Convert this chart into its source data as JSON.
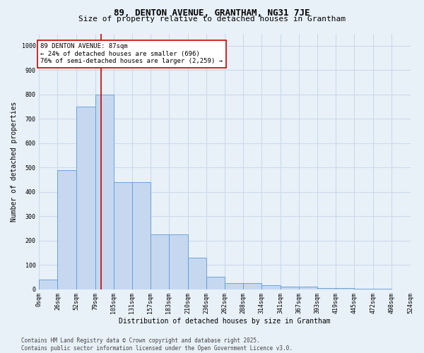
{
  "title_line1": "89, DENTON AVENUE, GRANTHAM, NG31 7JE",
  "title_line2": "Size of property relative to detached houses in Grantham",
  "xlabel": "Distribution of detached houses by size in Grantham",
  "ylabel": "Number of detached properties",
  "bin_edges": [
    0,
    26,
    52,
    79,
    105,
    131,
    157,
    183,
    210,
    236,
    262,
    288,
    314,
    341,
    367,
    393,
    419,
    445,
    472,
    498,
    524
  ],
  "bar_vals": [
    40,
    490,
    750,
    800,
    440,
    440,
    225,
    225,
    130,
    50,
    25,
    25,
    15,
    10,
    10,
    5,
    5,
    3,
    3,
    0
  ],
  "bar_color": "#c5d8f0",
  "bar_edge_color": "#5b9bd5",
  "grid_color": "#c8d8ea",
  "background_color": "#e8f0f8",
  "vline_x": 87,
  "vline_color": "#cc0000",
  "annotation_text": "89 DENTON AVENUE: 87sqm\n← 24% of detached houses are smaller (696)\n76% of semi-detached houses are larger (2,259) →",
  "annotation_box_color": "#ffffff",
  "annotation_box_edge": "#cc0000",
  "ylim": [
    0,
    1050
  ],
  "yticks": [
    0,
    100,
    200,
    300,
    400,
    500,
    600,
    700,
    800,
    900,
    1000
  ],
  "tick_labels": [
    "0sqm",
    "26sqm",
    "52sqm",
    "79sqm",
    "105sqm",
    "131sqm",
    "157sqm",
    "183sqm",
    "210sqm",
    "236sqm",
    "262sqm",
    "288sqm",
    "314sqm",
    "341sqm",
    "367sqm",
    "393sqm",
    "419sqm",
    "445sqm",
    "472sqm",
    "498sqm",
    "524sqm"
  ],
  "footnote": "Contains HM Land Registry data © Crown copyright and database right 2025.\nContains public sector information licensed under the Open Government Licence v3.0.",
  "title_fontsize": 9,
  "subtitle_fontsize": 8,
  "axis_label_fontsize": 7,
  "tick_fontsize": 6,
  "annotation_fontsize": 6.5,
  "footnote_fontsize": 5.5
}
